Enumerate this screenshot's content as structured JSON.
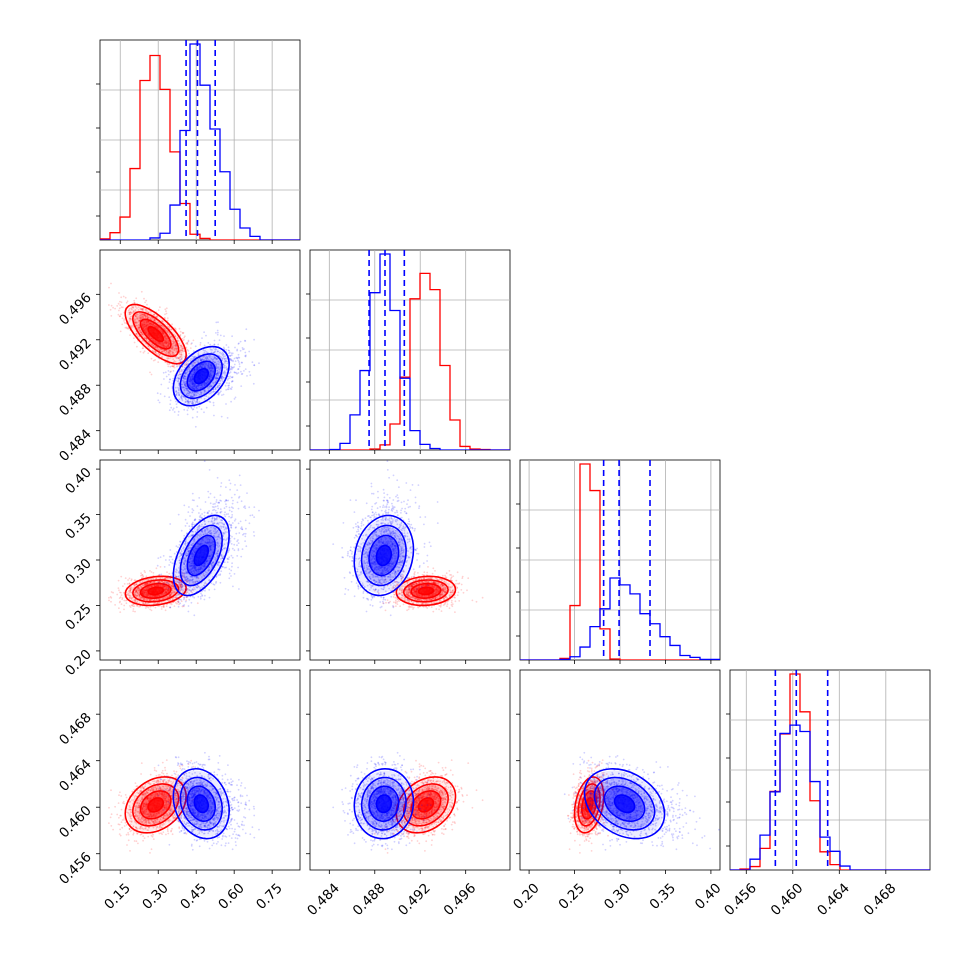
{
  "colors": {
    "red": "#ff0000",
    "blue": "#0000ff",
    "grid": "#b0b0b0",
    "axes": "#000000"
  },
  "chart_data": {
    "type": "corner",
    "title": "",
    "grid": true,
    "series": [
      {
        "color": "#ff0000",
        "mean": [
          0.29,
          0.4925,
          0.266,
          0.4602
        ],
        "std": [
          0.06,
          0.0013,
          0.008,
          0.0012
        ],
        "corr": [
          [
            1,
            -0.7,
            0.2,
            0.3
          ],
          [
            -0.7,
            1,
            0.1,
            0.3
          ],
          [
            0.2,
            0.1,
            1,
            0.3
          ],
          [
            0.3,
            0.3,
            0.3,
            1
          ]
        ]
      },
      {
        "color": "#0000ff",
        "mean": [
          0.47,
          0.4888,
          0.305,
          0.4603
        ],
        "std": [
          0.055,
          0.0013,
          0.022,
          0.0015
        ],
        "corr": [
          [
            1,
            0.4,
            0.5,
            -0.2
          ],
          [
            0.4,
            1,
            0.15,
            0.05
          ],
          [
            0.5,
            0.15,
            1,
            -0.3
          ],
          [
            -0.2,
            0.05,
            -0.3,
            1
          ]
        ]
      }
    ],
    "params": [
      {
        "range": [
          0.07,
          0.86
        ],
        "ticks": [
          0.15,
          0.3,
          0.45,
          0.6,
          0.75
        ],
        "tick_labels": [
          "0.15",
          "0.30",
          "0.45",
          "0.60",
          "0.75"
        ],
        "quantiles": [
          0.41,
          0.455,
          0.525
        ]
      },
      {
        "range": [
          0.4823,
          0.4999
        ],
        "ticks": [
          0.484,
          0.488,
          0.492,
          0.496
        ],
        "tick_labels": [
          "0.484",
          "0.488",
          "0.492",
          "0.496"
        ],
        "quantiles": [
          0.4875,
          0.4889,
          0.4906
        ]
      },
      {
        "range": [
          0.19,
          0.41
        ],
        "ticks": [
          0.2,
          0.25,
          0.3,
          0.35,
          0.4
        ],
        "tick_labels": [
          "0.20",
          "0.25",
          "0.30",
          "0.35",
          "0.40"
        ],
        "quantiles": [
          0.282,
          0.299,
          0.333
        ]
      },
      {
        "range": [
          0.4546,
          0.4718
        ],
        "ticks": [
          0.456,
          0.46,
          0.464,
          0.468
        ],
        "tick_labels": [
          "0.456",
          "0.460",
          "0.464",
          "0.468"
        ],
        "quantiles": [
          0.4585,
          0.4603,
          0.463
        ]
      }
    ],
    "contour_levels_sigma": [
      0.5,
      1.0,
      1.5,
      2.0
    ]
  }
}
